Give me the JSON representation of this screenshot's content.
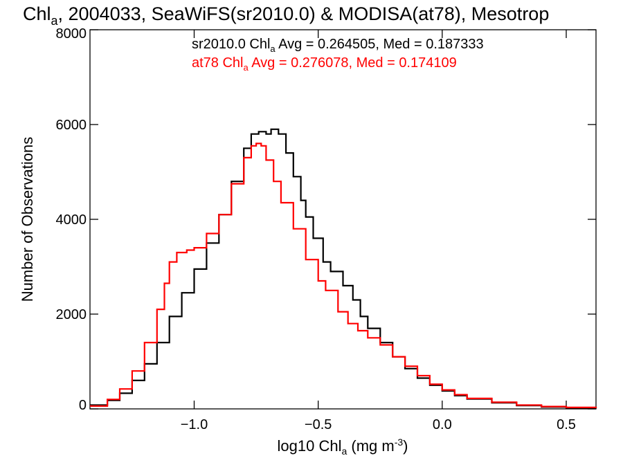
{
  "chart_data": {
    "type": "line",
    "style": "step-histogram",
    "title": {
      "prefix": "Chl",
      "sub": "a",
      "rest": ", 2004033, SeaWiFS(sr2010.0) & MODISA(at78), Mesotrop"
    },
    "xlabel": {
      "prefix": "log10 Chl",
      "sub": "a",
      "mid": " (mg m",
      "sup": "-3",
      "end": ")"
    },
    "ylabel": "Number of Observations",
    "xlim": [
      -1.42,
      0.62
    ],
    "ylim": [
      0,
      8000
    ],
    "x_ticks": [
      {
        "value": -1.0,
        "label": "−1.0"
      },
      {
        "value": -0.5,
        "label": "−0.5"
      },
      {
        "value": 0.0,
        "label": "0.0"
      },
      {
        "value": 0.5,
        "label": "0.5"
      }
    ],
    "y_ticks": [
      {
        "value": 0,
        "label": "0"
      },
      {
        "value": 2000,
        "label": "2000"
      },
      {
        "value": 4000,
        "label": "4000"
      },
      {
        "value": 6000,
        "label": "6000"
      },
      {
        "value": 8000,
        "label": "8000"
      }
    ],
    "annotations": [
      {
        "series": "sr2010.0",
        "text_prefix": "sr2010.0 Chl",
        "sub": "a",
        "text_rest": " Avg = 0.264505, Med = 0.187333",
        "color": "#000000"
      },
      {
        "series": "at78",
        "text_prefix": "at78 Chl",
        "sub": "a",
        "text_rest": " Avg = 0.276078, Med = 0.174109",
        "color": "#ff0000"
      }
    ],
    "series": [
      {
        "color": "#000000",
        "points": [
          [
            -1.42,
            80
          ],
          [
            -1.35,
            180
          ],
          [
            -1.3,
            330
          ],
          [
            -1.25,
            600
          ],
          [
            -1.2,
            950
          ],
          [
            -1.15,
            1400
          ],
          [
            -1.1,
            1950
          ],
          [
            -1.05,
            2450
          ],
          [
            -1.0,
            2950
          ],
          [
            -0.95,
            3500
          ],
          [
            -0.9,
            4100
          ],
          [
            -0.85,
            4800
          ],
          [
            -0.8,
            5500
          ],
          [
            -0.77,
            5800
          ],
          [
            -0.74,
            5850
          ],
          [
            -0.71,
            5800
          ],
          [
            -0.69,
            5900
          ],
          [
            -0.66,
            5800
          ],
          [
            -0.63,
            5400
          ],
          [
            -0.6,
            4900
          ],
          [
            -0.57,
            4400
          ],
          [
            -0.55,
            4050
          ],
          [
            -0.52,
            3600
          ],
          [
            -0.48,
            3100
          ],
          [
            -0.45,
            2900
          ],
          [
            -0.4,
            2600
          ],
          [
            -0.36,
            2300
          ],
          [
            -0.33,
            1950
          ],
          [
            -0.3,
            1700
          ],
          [
            -0.25,
            1400
          ],
          [
            -0.2,
            1100
          ],
          [
            -0.15,
            850
          ],
          [
            -0.1,
            650
          ],
          [
            -0.05,
            500
          ],
          [
            0.0,
            380
          ],
          [
            0.05,
            280
          ],
          [
            0.1,
            210
          ],
          [
            0.2,
            130
          ],
          [
            0.3,
            70
          ],
          [
            0.4,
            40
          ],
          [
            0.5,
            20
          ],
          [
            0.62,
            10
          ]
        ]
      },
      {
        "color": "#ff0000",
        "points": [
          [
            -1.42,
            60
          ],
          [
            -1.35,
            200
          ],
          [
            -1.3,
            420
          ],
          [
            -1.25,
            800
          ],
          [
            -1.2,
            1400
          ],
          [
            -1.15,
            2100
          ],
          [
            -1.12,
            2650
          ],
          [
            -1.1,
            3100
          ],
          [
            -1.07,
            3300
          ],
          [
            -1.03,
            3350
          ],
          [
            -1.0,
            3400
          ],
          [
            -0.95,
            3700
          ],
          [
            -0.9,
            4100
          ],
          [
            -0.85,
            4750
          ],
          [
            -0.8,
            5300
          ],
          [
            -0.77,
            5550
          ],
          [
            -0.75,
            5600
          ],
          [
            -0.73,
            5550
          ],
          [
            -0.71,
            5250
          ],
          [
            -0.68,
            4800
          ],
          [
            -0.65,
            4350
          ],
          [
            -0.6,
            3800
          ],
          [
            -0.55,
            3150
          ],
          [
            -0.5,
            2700
          ],
          [
            -0.47,
            2500
          ],
          [
            -0.42,
            2050
          ],
          [
            -0.38,
            1800
          ],
          [
            -0.34,
            1650
          ],
          [
            -0.3,
            1500
          ],
          [
            -0.25,
            1350
          ],
          [
            -0.2,
            1100
          ],
          [
            -0.15,
            900
          ],
          [
            -0.1,
            700
          ],
          [
            -0.05,
            520
          ],
          [
            0.0,
            400
          ],
          [
            0.05,
            300
          ],
          [
            0.1,
            220
          ],
          [
            0.2,
            140
          ],
          [
            0.3,
            80
          ],
          [
            0.4,
            50
          ],
          [
            0.5,
            30
          ],
          [
            0.62,
            15
          ]
        ]
      }
    ]
  }
}
